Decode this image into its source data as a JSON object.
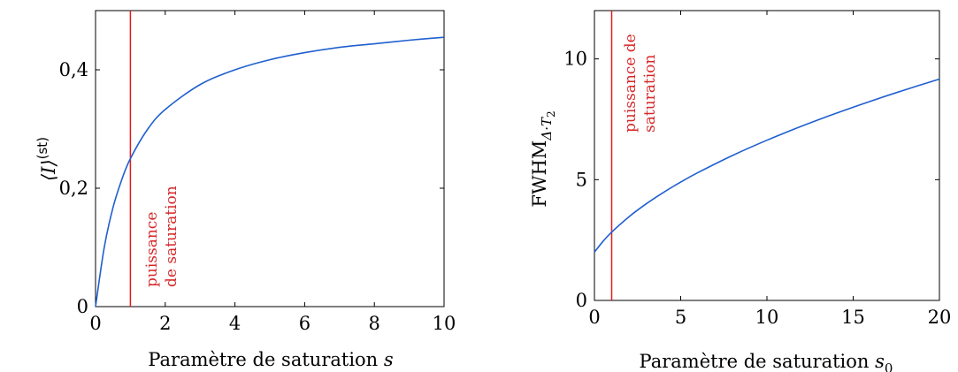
{
  "colors": {
    "curve": "#1f5fcf",
    "marker": "#e41a1c",
    "axis": "#000000"
  },
  "chart_data": [
    {
      "type": "line",
      "xlabel_main": "Paramètre de saturation ",
      "xlabel_var": "s",
      "ylabel_main": "⟨I⟩",
      "ylabel_sup": "(st)",
      "xlim": [
        0,
        10
      ],
      "ylim": [
        0,
        0.5
      ],
      "xticks": [
        0,
        2,
        4,
        6,
        8,
        10
      ],
      "xtick_labels": [
        "0",
        "2",
        "4",
        "6",
        "8",
        "10"
      ],
      "yticks": [
        0,
        0.2,
        0.4
      ],
      "ytick_labels": [
        "0",
        "0,2",
        "0,4"
      ],
      "series": [
        {
          "x": [
            0,
            0.25,
            0.5,
            0.75,
            1,
            1.5,
            2,
            3,
            4,
            5,
            6,
            7,
            8,
            9,
            10
          ],
          "y": [
            0,
            0.1,
            0.167,
            0.214,
            0.25,
            0.3,
            0.333,
            0.375,
            0.4,
            0.417,
            0.429,
            0.438,
            0.444,
            0.45,
            0.455
          ]
        }
      ],
      "vline_x": 1,
      "annotation_lines": [
        "puissance",
        "de saturation"
      ]
    },
    {
      "type": "line",
      "xlabel_main": "Paramètre de saturation ",
      "xlabel_var": "s",
      "xlabel_sub": "0",
      "ylabel_main": "FWHM",
      "ylabel_sub": "Δ·T",
      "ylabel_subsub": "2",
      "xlim": [
        0,
        20
      ],
      "ylim": [
        0,
        12
      ],
      "xticks": [
        0,
        5,
        10,
        15,
        20
      ],
      "xtick_labels": [
        "0",
        "5",
        "10",
        "15",
        "20"
      ],
      "yticks": [
        0,
        5,
        10
      ],
      "ytick_labels": [
        "0",
        "5",
        "10"
      ],
      "series": [
        {
          "x": [
            0,
            0.5,
            1,
            2,
            3,
            4,
            5,
            6,
            8,
            10,
            12,
            14,
            16,
            18,
            20
          ],
          "y": [
            2,
            2.449,
            2.828,
            3.464,
            4,
            4.472,
            4.899,
            5.292,
            6,
            6.633,
            7.211,
            7.746,
            8.246,
            8.718,
            9.165
          ]
        }
      ],
      "vline_x": 1,
      "annotation_lines": [
        "puissance de",
        "saturation"
      ]
    }
  ]
}
